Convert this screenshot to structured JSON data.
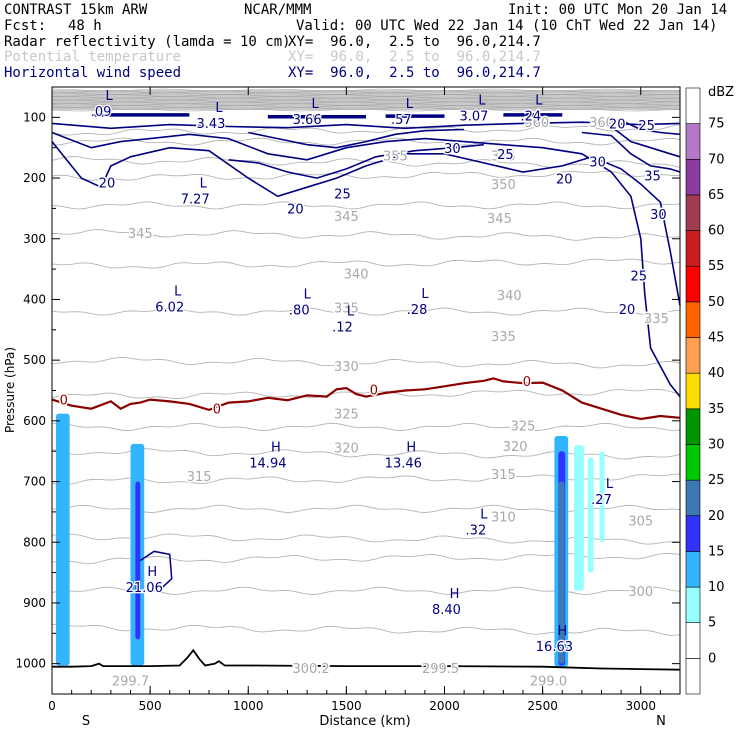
{
  "header": {
    "model": "CONTRAST 15km ARW",
    "center": "NCAR/MMM",
    "init": "Init: 00 UTC Mon 20 Jan 14",
    "fcst_label": "Fcst:",
    "fcst_value": "48 h",
    "valid": "Valid: 00 UTC Wed 22 Jan 14 (10 ChT Wed 22 Jan 14)",
    "fields": [
      {
        "name": "Radar reflectivity (lamda = 10 cm)",
        "xy": "XY=  96.0,  2.5 to  96.0,214.7",
        "color": "#000000"
      },
      {
        "name": "Potential temperature",
        "xy": "XY=  96.0,  2.5 to  96.0,214.7",
        "color": "#c8c8c8"
      },
      {
        "name": "Horizontal wind speed",
        "xy": "XY=  96.0,  2.5 to  96.0,214.7",
        "color": "#000080"
      }
    ]
  },
  "chart_data": {
    "type": "contour",
    "xlabel": "Distance (km)",
    "ylabel": "Pressure (hPa)",
    "xlim": [
      0,
      3200
    ],
    "ylim": [
      1050,
      50
    ],
    "xticks": [
      0,
      500,
      1000,
      1500,
      2000,
      2500,
      3000
    ],
    "yticks": [
      100,
      200,
      300,
      400,
      500,
      600,
      700,
      800,
      900,
      1000
    ],
    "x_end_labels": {
      "left": "S",
      "right": "N"
    },
    "colorbar": {
      "unit": "dBZ",
      "levels": [
        0,
        5,
        10,
        15,
        20,
        25,
        30,
        35,
        40,
        45,
        50,
        55,
        60,
        65,
        70,
        75
      ],
      "colors": [
        "#ffffff",
        "#ffffff",
        "#96ffff",
        "#32b4ff",
        "#3232ff",
        "#3c78b4",
        "#00c800",
        "#009600",
        "#ffdc00",
        "#ffa050",
        "#ff6400",
        "#ff0000",
        "#c81e1e",
        "#a03c50",
        "#8c3ca0",
        "#b478c8",
        "#ffffff"
      ]
    },
    "theta_labels": [
      {
        "text": "360",
        "x": 2470,
        "y": 110
      },
      {
        "text": "360",
        "x": 2800,
        "y": 110
      },
      {
        "text": "355",
        "x": 1750,
        "y": 165
      },
      {
        "text": "355",
        "x": 2300,
        "y": 165
      },
      {
        "text": "350",
        "x": 2300,
        "y": 212
      },
      {
        "text": "345",
        "x": 450,
        "y": 293
      },
      {
        "text": "345",
        "x": 1500,
        "y": 265
      },
      {
        "text": "345",
        "x": 2280,
        "y": 268
      },
      {
        "text": "340",
        "x": 1550,
        "y": 360
      },
      {
        "text": "340",
        "x": 2330,
        "y": 395
      },
      {
        "text": "335",
        "x": 1500,
        "y": 416
      },
      {
        "text": "335",
        "x": 2300,
        "y": 463
      },
      {
        "text": "335",
        "x": 3080,
        "y": 433
      },
      {
        "text": "330",
        "x": 1500,
        "y": 512
      },
      {
        "text": "325",
        "x": 1500,
        "y": 590
      },
      {
        "text": "325",
        "x": 2400,
        "y": 610
      },
      {
        "text": "320",
        "x": 1500,
        "y": 646
      },
      {
        "text": "320",
        "x": 2360,
        "y": 644
      },
      {
        "text": "315",
        "x": 750,
        "y": 693
      },
      {
        "text": "315",
        "x": 2300,
        "y": 690
      },
      {
        "text": "310",
        "x": 2300,
        "y": 760
      },
      {
        "text": "305",
        "x": 3000,
        "y": 767
      },
      {
        "text": "300",
        "x": 3000,
        "y": 883
      },
      {
        "text": "299.7",
        "x": 400,
        "y": 1030
      },
      {
        "text": "300.2",
        "x": 1320,
        "y": 1010
      },
      {
        "text": "299.5",
        "x": 1980,
        "y": 1010
      },
      {
        "text": "299.0",
        "x": 2530,
        "y": 1030
      }
    ],
    "wind_labels": [
      {
        "text": "20",
        "x": 280,
        "y": 210
      },
      {
        "text": "20",
        "x": 1240,
        "y": 253
      },
      {
        "text": "25",
        "x": 1480,
        "y": 228
      },
      {
        "text": "30",
        "x": 2040,
        "y": 153
      },
      {
        "text": "25",
        "x": 2310,
        "y": 163
      },
      {
        "text": "30",
        "x": 2780,
        "y": 175
      },
      {
        "text": "20",
        "x": 2610,
        "y": 203
      },
      {
        "text": "20",
        "x": 2880,
        "y": 113
      },
      {
        "text": "25",
        "x": 3030,
        "y": 115
      },
      {
        "text": "35",
        "x": 3060,
        "y": 198
      },
      {
        "text": "30",
        "x": 3090,
        "y": 262
      },
      {
        "text": "25",
        "x": 2990,
        "y": 363
      },
      {
        "text": "20",
        "x": 2930,
        "y": 418
      }
    ],
    "zero_isotherm_labels": [
      {
        "text": "0",
        "x": 60,
        "y": 567
      },
      {
        "text": "0",
        "x": 840,
        "y": 582
      },
      {
        "text": "0",
        "x": 1640,
        "y": 551
      },
      {
        "text": "0",
        "x": 2420,
        "y": 537
      }
    ],
    "extrema": [
      {
        "kind": "L",
        "value": ".09",
        "x": 250,
        "y": 88
      },
      {
        "kind": "L",
        "value": "3.43",
        "x": 810,
        "y": 108
      },
      {
        "kind": "L",
        "value": "3.66",
        "x": 1300,
        "y": 101
      },
      {
        "kind": "L",
        "value": ".57",
        "x": 1780,
        "y": 101
      },
      {
        "kind": "L",
        "value": "3.07",
        "x": 2150,
        "y": 95
      },
      {
        "kind": "L",
        "value": ".24",
        "x": 2440,
        "y": 95
      },
      {
        "kind": "L",
        "value": "7.27",
        "x": 730,
        "y": 232
      },
      {
        "kind": "L",
        "value": "6.02",
        "x": 600,
        "y": 410
      },
      {
        "kind": "L",
        "value": ".80",
        "x": 1260,
        "y": 415
      },
      {
        "kind": "L",
        "value": ".12",
        "x": 1480,
        "y": 443
      },
      {
        "kind": "L",
        "value": ".28",
        "x": 1860,
        "y": 414
      },
      {
        "kind": "H",
        "value": "14.94",
        "x": 1100,
        "y": 667
      },
      {
        "kind": "H",
        "value": "13.46",
        "x": 1790,
        "y": 667
      },
      {
        "kind": "L",
        "value": ".32",
        "x": 2160,
        "y": 777
      },
      {
        "kind": "L",
        "value": ".27",
        "x": 2800,
        "y": 727
      },
      {
        "kind": "H",
        "value": "21.06",
        "x": 470,
        "y": 872
      },
      {
        "kind": "H",
        "value": "8.40",
        "x": 2010,
        "y": 908
      },
      {
        "kind": "H",
        "value": "16.63",
        "x": 2560,
        "y": 969
      }
    ],
    "reflectivity_columns": [
      {
        "x0": 20,
        "x1": 90,
        "ytop": 588,
        "ybot": 1003,
        "dbz": 10
      },
      {
        "x0": 35,
        "x1": 70,
        "ytop": 640,
        "ybot": 1000,
        "dbz": 12
      },
      {
        "x0": 400,
        "x1": 470,
        "ytop": 638,
        "ybot": 1003,
        "dbz": 10
      },
      {
        "x0": 415,
        "x1": 455,
        "ytop": 680,
        "ybot": 1000,
        "dbz": 14
      },
      {
        "x0": 425,
        "x1": 450,
        "ytop": 700,
        "ybot": 960,
        "dbz": 17
      },
      {
        "x0": 2560,
        "x1": 2630,
        "ytop": 625,
        "ybot": 1005,
        "dbz": 12
      },
      {
        "x0": 2580,
        "x1": 2615,
        "ytop": 650,
        "ybot": 1003,
        "dbz": 17
      },
      {
        "x0": 2580,
        "x1": 2612,
        "ytop": 700,
        "ybot": 1000,
        "dbz": 22
      },
      {
        "x0": 2660,
        "x1": 2710,
        "ytop": 640,
        "ybot": 880,
        "dbz": 8
      },
      {
        "x0": 2730,
        "x1": 2760,
        "ytop": 660,
        "ybot": 850,
        "dbz": 8
      },
      {
        "x0": 2790,
        "x1": 2815,
        "ytop": 650,
        "ybot": 800,
        "dbz": 8
      }
    ],
    "zero_isotherm": {
      "x": [
        0,
        100,
        200,
        300,
        350,
        400,
        450,
        500,
        600,
        700,
        800,
        900,
        1000,
        1100,
        1200,
        1300,
        1400,
        1450,
        1500,
        1550,
        1600,
        1700,
        1800,
        1900,
        2000,
        2100,
        2200,
        2250,
        2300,
        2400,
        2500,
        2600,
        2700,
        2800,
        2900,
        3000,
        3100,
        3200
      ],
      "p": [
        565,
        575,
        580,
        568,
        580,
        572,
        570,
        565,
        568,
        572,
        582,
        570,
        568,
        562,
        566,
        558,
        560,
        548,
        546,
        556,
        560,
        554,
        550,
        548,
        543,
        538,
        534,
        530,
        535,
        538,
        537,
        550,
        570,
        580,
        590,
        597,
        592,
        595
      ]
    },
    "terrain": {
      "x": [
        0,
        100,
        200,
        240,
        260,
        300,
        500,
        650,
        690,
        720,
        750,
        780,
        830,
        850,
        880,
        1000,
        1500,
        2000,
        2500,
        2600,
        2800,
        3000,
        3200
      ],
      "p": [
        1005,
        1005,
        1004,
        1000,
        1004,
        1004,
        1004,
        1003,
        990,
        978,
        992,
        1003,
        1000,
        996,
        1003,
        1003,
        1004,
        1004,
        1005,
        1006,
        1008,
        1009,
        1010
      ]
    },
    "tropopause_band": {
      "ytop": 55,
      "ybot": 88,
      "color": "#c8c8c8"
    }
  }
}
